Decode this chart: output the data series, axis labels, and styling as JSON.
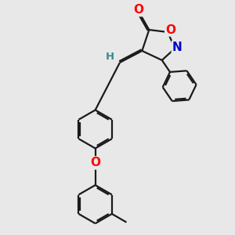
{
  "bg_color": "#e8e8e8",
  "bond_color": "#1a1a1a",
  "bond_width": 1.6,
  "dbo": 0.055,
  "atom_colors": {
    "O": "#ff0000",
    "N": "#0000cc",
    "H": "#3a8888"
  },
  "font_size": 9.5,
  "fig_size": [
    3.0,
    3.0
  ],
  "dpi": 100
}
